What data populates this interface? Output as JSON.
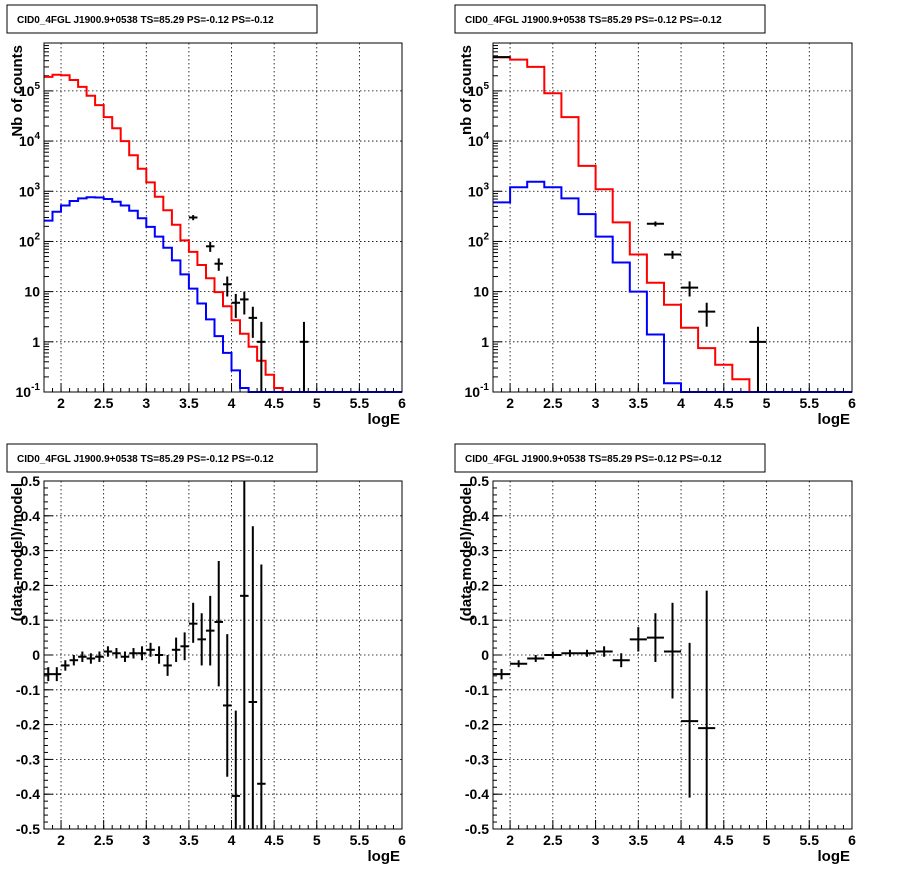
{
  "chart_data": [
    {
      "type": "histogram",
      "title": "CID0_4FGL J1900.9+0538 TS=85.29 PS=-0.12 PS=-0.12",
      "xlabel": "logE",
      "ylabel": "Nb of counts",
      "xlim": [
        1.8,
        6
      ],
      "ylim": [
        0.1,
        900000
      ],
      "yscale": "log",
      "grid": true,
      "xticks": [
        "2",
        "2.5",
        "3",
        "3.5",
        "4",
        "4.5",
        "5",
        "5.5",
        "6"
      ],
      "yticks": [
        "10^-1",
        "1",
        "10",
        "10^2",
        "10^3",
        "10^4",
        "10^5"
      ],
      "bin_edges": [
        1.8,
        1.9,
        2.0,
        2.1,
        2.2,
        2.3,
        2.4,
        2.5,
        2.6,
        2.7,
        2.8,
        2.9,
        3.0,
        3.1,
        3.2,
        3.3,
        3.4,
        3.5,
        3.6,
        3.7,
        3.8,
        3.9,
        4.0,
        4.1,
        4.2,
        4.3,
        4.4,
        4.5,
        4.6,
        4.7,
        4.8,
        4.9,
        5.0,
        5.1,
        5.2,
        5.3,
        5.4,
        5.5,
        5.6,
        5.7,
        5.8,
        5.9,
        6.0
      ],
      "series": [
        {
          "style": "step",
          "color": "#ff0000",
          "values": [
            190000,
            210000,
            205000,
            165000,
            120000,
            80000,
            52000,
            30000,
            18000,
            10000,
            5200,
            2800,
            1500,
            780,
            420,
            215,
            105,
            62,
            34,
            18.5,
            9.8,
            5.1,
            2.7,
            1.45,
            0.8,
            0.42,
            0.22,
            0.12,
            0.1,
            0.1,
            0.1,
            0.1,
            0.1,
            0.1,
            0.1,
            0.1,
            0.1,
            0.1,
            0.1,
            0.1,
            0.1,
            0.1
          ]
        },
        {
          "style": "step",
          "color": "#0000ff",
          "values": [
            260,
            390,
            520,
            640,
            720,
            760,
            750,
            700,
            620,
            520,
            410,
            290,
            195,
            125,
            75,
            42,
            22,
            11.5,
            5.8,
            2.8,
            1.3,
            0.6,
            0.27,
            0.12,
            0.1,
            0.1,
            0.1,
            0.1,
            0.1,
            0.1,
            0.1,
            0.1,
            0.1,
            0.1,
            0.1,
            0.1,
            0.1,
            0.1,
            0.1,
            0.1,
            0.1,
            0.1
          ]
        },
        {
          "style": "errorbar",
          "color": "#000000",
          "points": [
            {
              "x": 3.55,
              "y": 300,
              "ylo": 265,
              "yhi": 335,
              "xerr": 0.05
            },
            {
              "x": 3.75,
              "y": 80,
              "ylo": 62,
              "yhi": 98,
              "xerr": 0.05
            },
            {
              "x": 3.85,
              "y": 36,
              "ylo": 26,
              "yhi": 46,
              "xerr": 0.05
            },
            {
              "x": 3.95,
              "y": 14,
              "ylo": 8,
              "yhi": 20,
              "xerr": 0.05
            },
            {
              "x": 4.05,
              "y": 6,
              "ylo": 3,
              "yhi": 9,
              "xerr": 0.05
            },
            {
              "x": 4.15,
              "y": 7,
              "ylo": 3.5,
              "yhi": 10,
              "xerr": 0.05
            },
            {
              "x": 4.25,
              "y": 3,
              "ylo": 1.2,
              "yhi": 5,
              "xerr": 0.05
            },
            {
              "x": 4.35,
              "y": 1,
              "ylo": 0.1,
              "yhi": 2.5,
              "xerr": 0.05
            },
            {
              "x": 4.85,
              "y": 1,
              "ylo": 0.1,
              "yhi": 2.5,
              "xerr": 0.05
            }
          ]
        }
      ]
    },
    {
      "type": "histogram",
      "title": "CID0_4FGL J1900.9+0538 TS=85.29 PS=-0.12 PS=-0.12",
      "xlabel": "logE",
      "ylabel": "nb of counts",
      "xlim": [
        1.8,
        6
      ],
      "ylim": [
        0.1,
        900000
      ],
      "yscale": "log",
      "grid": true,
      "xticks": [
        "2",
        "2.5",
        "3",
        "3.5",
        "4",
        "4.5",
        "5",
        "5.5",
        "6"
      ],
      "yticks": [
        "10^-1",
        "1",
        "10",
        "10^2",
        "10^3",
        "10^4",
        "10^5"
      ],
      "bin_edges": [
        1.8,
        2.0,
        2.2,
        2.4,
        2.6,
        2.8,
        3.0,
        3.2,
        3.4,
        3.6,
        3.8,
        4.0,
        4.2,
        4.4,
        4.6,
        4.8,
        5.0,
        5.2,
        5.4,
        5.6,
        5.8,
        6.0
      ],
      "series": [
        {
          "style": "step",
          "color": "#ff0000",
          "values": [
            470000,
            420000,
            300000,
            90000,
            30000,
            3200,
            1100,
            240,
            55,
            15,
            5.5,
            1.9,
            0.75,
            0.35,
            0.18,
            0.1,
            0.1,
            0.1,
            0.1,
            0.1,
            0.1
          ]
        },
        {
          "style": "step",
          "color": "#0000ff",
          "values": [
            600,
            1200,
            1550,
            1200,
            720,
            350,
            125,
            38,
            10,
            1.4,
            0.15,
            0.1,
            0.1,
            0.1,
            0.1,
            0.1,
            0.1,
            0.1,
            0.1,
            0.1,
            0.1
          ]
        },
        {
          "style": "errorbar",
          "color": "#000000",
          "points": [
            {
              "x": 1.9,
              "y": 470000,
              "ylo": 460000,
              "yhi": 480000,
              "xerr": 0.1
            },
            {
              "x": 3.7,
              "y": 225,
              "ylo": 200,
              "yhi": 250,
              "xerr": 0.1
            },
            {
              "x": 3.9,
              "y": 55,
              "ylo": 45,
              "yhi": 65,
              "xerr": 0.1
            },
            {
              "x": 4.1,
              "y": 12,
              "ylo": 8,
              "yhi": 16,
              "xerr": 0.1
            },
            {
              "x": 4.3,
              "y": 4,
              "ylo": 2,
              "yhi": 6,
              "xerr": 0.1
            },
            {
              "x": 4.9,
              "y": 1,
              "ylo": 0.1,
              "yhi": 2,
              "xerr": 0.1
            }
          ]
        }
      ]
    },
    {
      "type": "scatter",
      "title": "CID0_4FGL J1900.9+0538 TS=85.29 PS=-0.12 PS=-0.12",
      "xlabel": "logE",
      "ylabel": "(data-model)/model",
      "xlim": [
        1.8,
        6
      ],
      "ylim": [
        -0.5,
        0.5
      ],
      "grid": true,
      "xticks": [
        "2",
        "2.5",
        "3",
        "3.5",
        "4",
        "4.5",
        "5",
        "5.5",
        "6"
      ],
      "yticks": [
        "-0.5",
        "-0.4",
        "-0.3",
        "-0.2",
        "-0.1",
        "0",
        "0.1",
        "0.2",
        "0.3",
        "0.4",
        "0.5"
      ],
      "series": [
        {
          "style": "errorbar",
          "color": "#000000",
          "points": [
            {
              "x": 1.85,
              "y": -0.055,
              "ylo": -0.075,
              "yhi": -0.035,
              "xerr": 0.05
            },
            {
              "x": 1.95,
              "y": -0.055,
              "ylo": -0.075,
              "yhi": -0.035,
              "xerr": 0.05
            },
            {
              "x": 2.05,
              "y": -0.03,
              "ylo": -0.045,
              "yhi": -0.015,
              "xerr": 0.05
            },
            {
              "x": 2.15,
              "y": -0.015,
              "ylo": -0.03,
              "yhi": 0.0,
              "xerr": 0.05
            },
            {
              "x": 2.25,
              "y": -0.005,
              "ylo": -0.02,
              "yhi": 0.01,
              "xerr": 0.05
            },
            {
              "x": 2.35,
              "y": -0.01,
              "ylo": -0.025,
              "yhi": 0.005,
              "xerr": 0.05
            },
            {
              "x": 2.45,
              "y": -0.005,
              "ylo": -0.02,
              "yhi": 0.01,
              "xerr": 0.05
            },
            {
              "x": 2.55,
              "y": 0.01,
              "ylo": -0.005,
              "yhi": 0.025,
              "xerr": 0.05
            },
            {
              "x": 2.65,
              "y": 0.005,
              "ylo": -0.01,
              "yhi": 0.02,
              "xerr": 0.05
            },
            {
              "x": 2.75,
              "y": -0.005,
              "ylo": -0.02,
              "yhi": 0.01,
              "xerr": 0.05
            },
            {
              "x": 2.85,
              "y": 0.005,
              "ylo": -0.01,
              "yhi": 0.02,
              "xerr": 0.05
            },
            {
              "x": 2.95,
              "y": 0.005,
              "ylo": -0.015,
              "yhi": 0.025,
              "xerr": 0.05
            },
            {
              "x": 3.05,
              "y": 0.015,
              "ylo": -0.005,
              "yhi": 0.035,
              "xerr": 0.05
            },
            {
              "x": 3.15,
              "y": 0.0,
              "ylo": -0.025,
              "yhi": 0.025,
              "xerr": 0.05
            },
            {
              "x": 3.25,
              "y": -0.03,
              "ylo": -0.06,
              "yhi": 0.0,
              "xerr": 0.05
            },
            {
              "x": 3.35,
              "y": 0.015,
              "ylo": -0.02,
              "yhi": 0.05,
              "xerr": 0.05
            },
            {
              "x": 3.45,
              "y": 0.025,
              "ylo": -0.015,
              "yhi": 0.065,
              "xerr": 0.05
            },
            {
              "x": 3.55,
              "y": 0.09,
              "ylo": 0.035,
              "yhi": 0.15,
              "xerr": 0.05
            },
            {
              "x": 3.65,
              "y": 0.045,
              "ylo": -0.03,
              "yhi": 0.12,
              "xerr": 0.05
            },
            {
              "x": 3.75,
              "y": 0.07,
              "ylo": -0.03,
              "yhi": 0.17,
              "xerr": 0.05
            },
            {
              "x": 3.85,
              "y": 0.095,
              "ylo": -0.09,
              "yhi": 0.27,
              "xerr": 0.05
            },
            {
              "x": 3.95,
              "y": -0.145,
              "ylo": -0.35,
              "yhi": 0.06,
              "xerr": 0.05
            },
            {
              "x": 4.05,
              "y": -0.405,
              "ylo": -0.5,
              "yhi": -0.16,
              "xerr": 0.05
            },
            {
              "x": 4.15,
              "y": 0.17,
              "ylo": -0.5,
              "yhi": 0.5,
              "xerr": 0.05
            },
            {
              "x": 4.25,
              "y": -0.135,
              "ylo": -0.5,
              "yhi": 0.37,
              "xerr": 0.05
            },
            {
              "x": 4.35,
              "y": -0.37,
              "ylo": -0.5,
              "yhi": 0.26,
              "xerr": 0.05
            }
          ]
        }
      ]
    },
    {
      "type": "scatter",
      "title": "CID0_4FGL J1900.9+0538 TS=85.29 PS=-0.12 PS=-0.12",
      "xlabel": "logE",
      "ylabel": "(data-model)/model",
      "xlim": [
        1.8,
        6
      ],
      "ylim": [
        -0.5,
        0.5
      ],
      "grid": true,
      "xticks": [
        "2",
        "2.5",
        "3",
        "3.5",
        "4",
        "4.5",
        "5",
        "5.5",
        "6"
      ],
      "yticks": [
        "-0.5",
        "-0.4",
        "-0.3",
        "-0.2",
        "-0.1",
        "0",
        "0.1",
        "0.2",
        "0.3",
        "0.4",
        "0.5"
      ],
      "series": [
        {
          "style": "errorbar",
          "color": "#000000",
          "points": [
            {
              "x": 1.9,
              "y": -0.055,
              "ylo": -0.07,
              "yhi": -0.04,
              "xerr": 0.1
            },
            {
              "x": 2.1,
              "y": -0.025,
              "ylo": -0.035,
              "yhi": -0.015,
              "xerr": 0.1
            },
            {
              "x": 2.3,
              "y": -0.01,
              "ylo": -0.02,
              "yhi": 0.0,
              "xerr": 0.1
            },
            {
              "x": 2.5,
              "y": 0.0,
              "ylo": -0.01,
              "yhi": 0.01,
              "xerr": 0.1
            },
            {
              "x": 2.7,
              "y": 0.005,
              "ylo": -0.005,
              "yhi": 0.015,
              "xerr": 0.1
            },
            {
              "x": 2.9,
              "y": 0.005,
              "ylo": -0.005,
              "yhi": 0.015,
              "xerr": 0.1
            },
            {
              "x": 3.1,
              "y": 0.01,
              "ylo": -0.005,
              "yhi": 0.025,
              "xerr": 0.1
            },
            {
              "x": 3.3,
              "y": -0.015,
              "ylo": -0.035,
              "yhi": 0.005,
              "xerr": 0.1
            },
            {
              "x": 3.5,
              "y": 0.045,
              "ylo": 0.01,
              "yhi": 0.08,
              "xerr": 0.1
            },
            {
              "x": 3.7,
              "y": 0.05,
              "ylo": -0.02,
              "yhi": 0.12,
              "xerr": 0.1
            },
            {
              "x": 3.9,
              "y": 0.01,
              "ylo": -0.125,
              "yhi": 0.15,
              "xerr": 0.1
            },
            {
              "x": 4.1,
              "y": -0.19,
              "ylo": -0.41,
              "yhi": 0.035,
              "xerr": 0.1
            },
            {
              "x": 4.3,
              "y": -0.21,
              "ylo": -0.5,
              "yhi": 0.185,
              "xerr": 0.1
            }
          ]
        }
      ]
    }
  ]
}
